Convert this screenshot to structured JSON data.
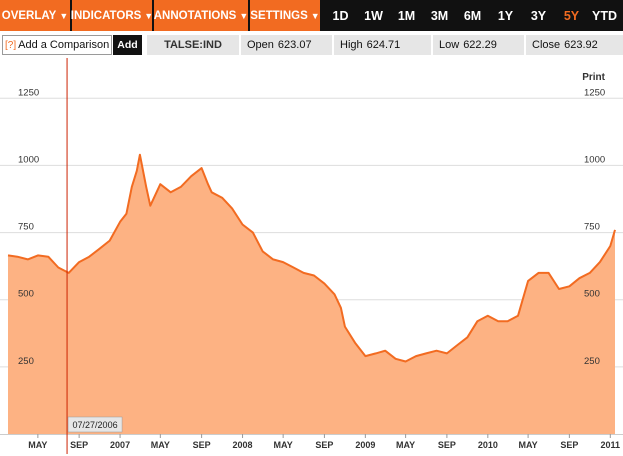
{
  "toolbar": {
    "menus": [
      {
        "label": "OVERLAY",
        "caret": "▼"
      },
      {
        "label": "INDICATORS",
        "caret": "▼"
      },
      {
        "label": "ANNOTATIONS",
        "caret": "▼"
      },
      {
        "label": "SETTINGS",
        "caret": "▼"
      }
    ],
    "ranges": [
      "1D",
      "1W",
      "1M",
      "3M",
      "6M",
      "1Y",
      "3Y",
      "5Y",
      "YTD"
    ],
    "active_range": "5Y"
  },
  "info": {
    "compare_icon": "[?]",
    "compare_placeholder": "Add a Comparison",
    "add_label": "Add",
    "symbol": "TALSE:IND",
    "open_label": "Open",
    "open": "623.07",
    "high_label": "High",
    "high": "624.71",
    "low_label": "Low",
    "low": "622.29",
    "close_label": "Close",
    "close": "623.92"
  },
  "chart": {
    "print_label": "Print",
    "cursor_date": "07/27/2006",
    "fill_color": "#fdb283",
    "line_color": "#f26b21"
  },
  "chart_data": {
    "type": "area",
    "title": "",
    "xlabel": "",
    "ylabel": "",
    "ylim": [
      0,
      1400
    ],
    "yticks": [
      250,
      500,
      750,
      1000,
      1250
    ],
    "xticks": [
      "MAY",
      "SEP",
      "2007",
      "MAY",
      "SEP",
      "2008",
      "MAY",
      "SEP",
      "2009",
      "MAY",
      "SEP",
      "2010",
      "MAY",
      "SEP",
      "2011"
    ],
    "grid": true,
    "x": [
      "2006-02-01",
      "2006-03-01",
      "2006-04-01",
      "2006-05-01",
      "2006-06-01",
      "2006-07-01",
      "2006-08-01",
      "2006-09-01",
      "2006-10-01",
      "2006-11-01",
      "2006-12-01",
      "2007-01-01",
      "2007-01-20",
      "2007-02-05",
      "2007-02-20",
      "2007-03-01",
      "2007-03-20",
      "2007-04-01",
      "2007-05-01",
      "2007-06-01",
      "2007-07-01",
      "2007-08-01",
      "2007-09-01",
      "2007-09-20",
      "2007-10-01",
      "2007-11-01",
      "2007-12-01",
      "2008-01-01",
      "2008-02-01",
      "2008-03-01",
      "2008-04-01",
      "2008-05-01",
      "2008-06-01",
      "2008-07-01",
      "2008-08-01",
      "2008-09-01",
      "2008-10-01",
      "2008-10-20",
      "2008-11-01",
      "2008-12-01",
      "2009-01-01",
      "2009-02-01",
      "2009-03-01",
      "2009-04-01",
      "2009-05-01",
      "2009-06-01",
      "2009-07-01",
      "2009-08-01",
      "2009-09-01",
      "2009-10-01",
      "2009-11-01",
      "2009-12-01",
      "2010-01-01",
      "2010-02-01",
      "2010-03-01",
      "2010-04-01",
      "2010-05-01",
      "2010-06-01",
      "2010-07-01",
      "2010-08-01",
      "2010-09-01",
      "2010-10-01",
      "2010-11-01",
      "2010-12-01",
      "2011-01-01",
      "2011-01-15"
    ],
    "series": [
      {
        "values": [
          665,
          660,
          650,
          665,
          660,
          620,
          600,
          640,
          660,
          690,
          720,
          790,
          820,
          920,
          980,
          1040,
          920,
          850,
          930,
          900,
          920,
          960,
          990,
          930,
          900,
          880,
          840,
          780,
          750,
          680,
          650,
          640,
          620,
          600,
          590,
          560,
          520,
          470,
          400,
          340,
          290,
          300,
          310,
          280,
          270,
          290,
          300,
          310,
          300,
          330,
          360,
          420,
          440,
          420,
          420,
          440,
          570,
          600,
          600,
          540,
          550,
          580,
          600,
          640,
          700,
          760
        ]
      }
    ]
  }
}
